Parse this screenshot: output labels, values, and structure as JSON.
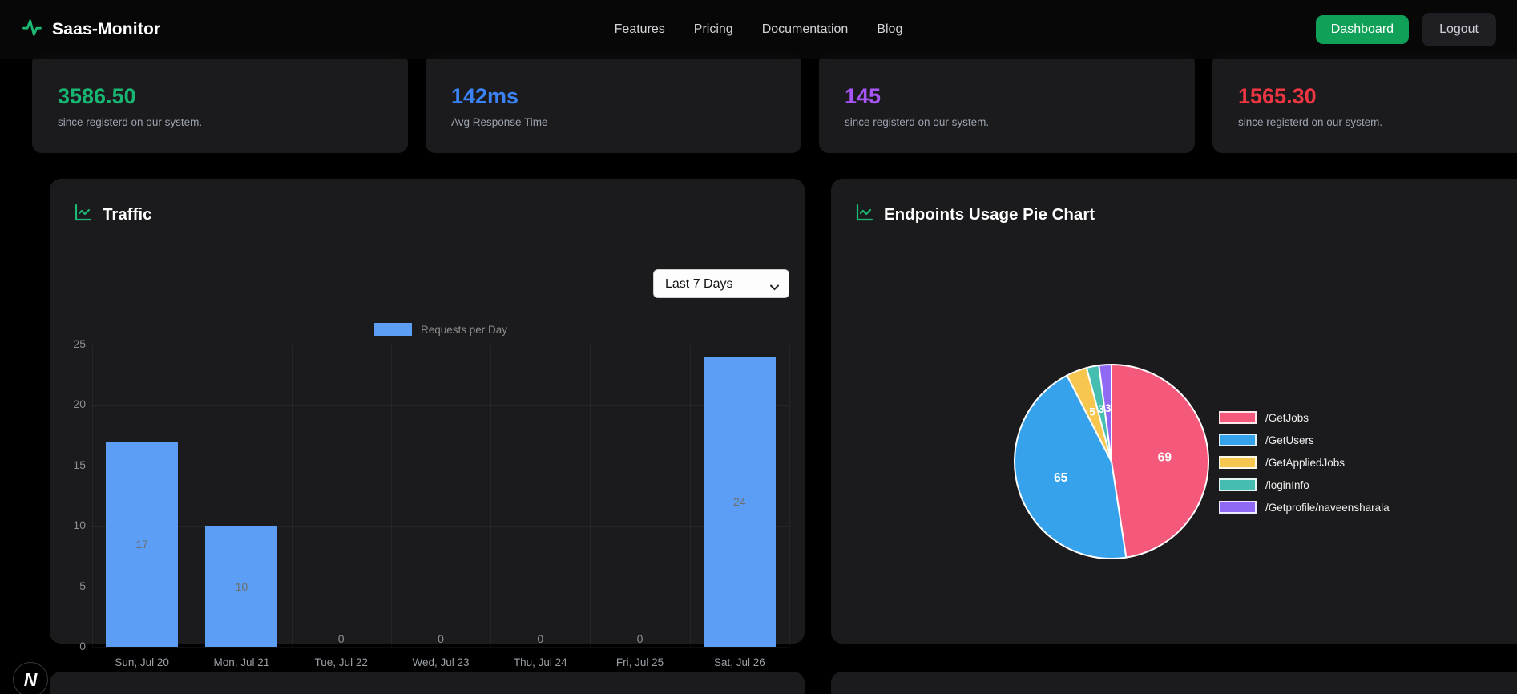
{
  "navbar": {
    "brand": "Saas-Monitor",
    "links": [
      "Features",
      "Pricing",
      "Documentation",
      "Blog"
    ],
    "dashboard_button": "Dashboard",
    "logout_button": "Logout",
    "dashboard_button_color": "#10a057",
    "brand_icon_color": "#1db873"
  },
  "stats": [
    {
      "value": "3586.50",
      "caption": "since registerd on our system.",
      "color": "#18b673"
    },
    {
      "value": "142ms",
      "caption": "Avg Response Time",
      "color": "#3b82f6"
    },
    {
      "value": "145",
      "caption": "since registerd on our system.",
      "color": "#a855f7"
    },
    {
      "value": "1565.30",
      "caption": "since registerd on our system.",
      "color": "#ef3642"
    }
  ],
  "traffic": {
    "title": "Traffic",
    "icon": "line-chart-icon",
    "icon_color": "#1db873",
    "range_select": {
      "value": "Last 7 Days"
    },
    "chart_data": {
      "type": "bar",
      "title": "Traffic",
      "categories": [
        "Sun, Jul 20",
        "Mon, Jul 21",
        "Tue, Jul 22",
        "Wed, Jul 23",
        "Thu, Jul 24",
        "Fri, Jul 25",
        "Sat, Jul 26"
      ],
      "values": [
        17,
        10,
        0,
        0,
        0,
        0,
        24
      ],
      "series_label": "Requests per Day",
      "bar_color": "#5c9ef6",
      "ylim": [
        0,
        25
      ],
      "yticks": [
        0,
        5,
        10,
        15,
        20,
        25
      ],
      "grid": true,
      "legend_position": "top",
      "data_labels": true
    }
  },
  "endpoints": {
    "title": "Endpoints Usage Pie Chart",
    "icon": "line-chart-icon",
    "icon_color": "#1db873",
    "chart_data": {
      "type": "pie",
      "labels": [
        "/GetJobs",
        "/GetUsers",
        "/GetAppliedJobs",
        "/loginInfo",
        "/Getprofile/naveensharala"
      ],
      "values": [
        69,
        65,
        5,
        3,
        3
      ],
      "colors": [
        "#f4597c",
        "#36a2eb",
        "#f7c64e",
        "#45bdb0",
        "#8f68f4"
      ],
      "legend_position": "right",
      "data_labels": true
    }
  },
  "dev_badge": {
    "label": "N"
  }
}
